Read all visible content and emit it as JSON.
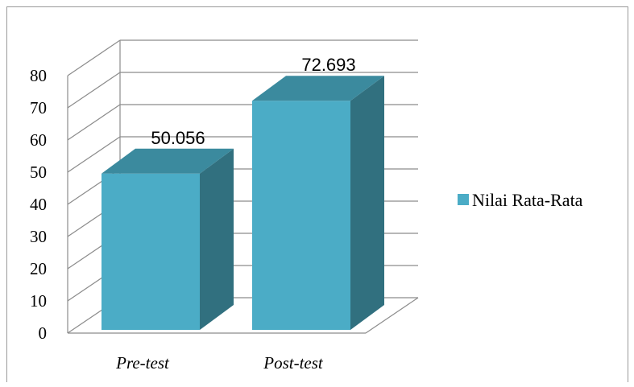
{
  "chart_data": {
    "type": "bar",
    "categories": [
      "Pre-test",
      "Post-test"
    ],
    "series": [
      {
        "name": "Nilai Rata-Rata",
        "values": [
          50.056,
          72.693
        ]
      }
    ],
    "data_labels": [
      "50.056",
      "72.693"
    ],
    "y_ticks": [
      "0",
      "10",
      "20",
      "30",
      "40",
      "50",
      "60",
      "70",
      "80"
    ],
    "ylim": [
      0,
      80
    ],
    "grid": true,
    "three_d": true,
    "legend_position": "right",
    "colors": {
      "bar_front": "#4bacc6",
      "bar_side": "#31707f",
      "bar_top": "#3b8a9e",
      "grid": "#8c8c8c"
    }
  }
}
